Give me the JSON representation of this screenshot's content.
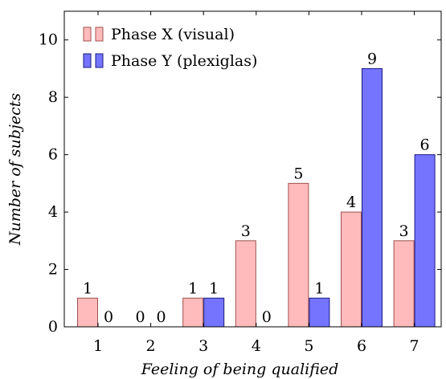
{
  "chart_data": {
    "type": "bar",
    "categories": [
      "1",
      "2",
      "3",
      "4",
      "5",
      "6",
      "7"
    ],
    "series": [
      {
        "name": "Phase X (visual)",
        "values": [
          1,
          0,
          1,
          3,
          5,
          4,
          3
        ],
        "color": "#ffbbbb",
        "stroke": "#a05050"
      },
      {
        "name": "Phase Y (plexiglas)",
        "values": [
          0,
          0,
          1,
          0,
          1,
          9,
          6
        ],
        "color": "#7474ff",
        "stroke": "#1a1a80"
      }
    ],
    "xlabel": "Feeling of being qualified",
    "ylabel": "Number of subjects",
    "ylim": [
      0,
      11
    ],
    "yticks": [
      0,
      2,
      4,
      6,
      8,
      10
    ],
    "grid": false,
    "legend_position": "top-left",
    "data_labels": true
  }
}
